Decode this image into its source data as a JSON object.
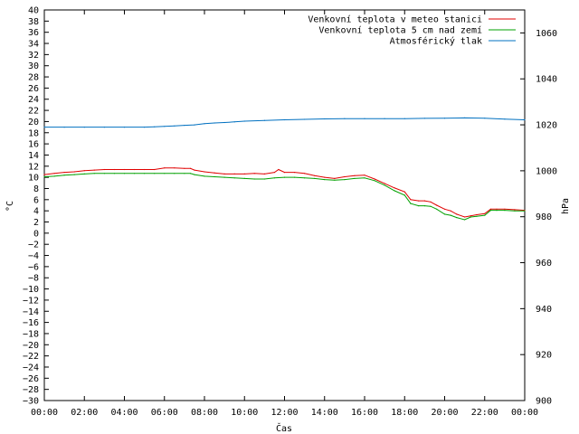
{
  "chart_data": {
    "type": "line",
    "xlabel": "Čas",
    "ylabel_left": "°C",
    "ylabel_right": "hPa",
    "ylim_left": [
      -30,
      40
    ],
    "ylim_right": [
      900,
      1070
    ],
    "x_ticks": [
      "00:00",
      "02:00",
      "04:00",
      "06:00",
      "08:00",
      "10:00",
      "12:00",
      "14:00",
      "16:00",
      "18:00",
      "20:00",
      "22:00",
      "00:00"
    ],
    "yticks_left": [
      -30,
      -28,
      -26,
      -24,
      -22,
      -20,
      -18,
      -16,
      -14,
      -12,
      -10,
      -8,
      -6,
      -4,
      -2,
      0,
      2,
      4,
      6,
      8,
      10,
      12,
      14,
      16,
      18,
      20,
      22,
      24,
      26,
      28,
      30,
      32,
      34,
      36,
      38,
      40
    ],
    "yticks_right": [
      900,
      920,
      940,
      960,
      980,
      1000,
      1020,
      1040,
      1060
    ],
    "grid": false,
    "legend_position": "top-right",
    "series": [
      {
        "name": "Venkovní teplota v meteo stanici",
        "axis": "left",
        "color": "#e00000",
        "x": [
          0,
          0.5,
          1,
          1.5,
          2,
          2.5,
          3,
          3.5,
          4,
          4.5,
          5,
          5.5,
          6,
          6.5,
          7,
          7.3,
          7.5,
          8,
          8.5,
          9,
          9.5,
          10,
          10.5,
          11,
          11.5,
          11.7,
          12,
          12.5,
          13,
          13.5,
          14,
          14.5,
          15,
          15.5,
          16,
          16.5,
          17,
          17.5,
          18,
          18.3,
          18.7,
          19,
          19.3,
          19.6,
          20,
          20.3,
          20.6,
          21,
          21.3,
          21.6,
          22,
          22.3,
          22.6,
          23,
          23.5,
          24
        ],
        "values": [
          10.5,
          10.7,
          10.9,
          11.0,
          11.2,
          11.3,
          11.4,
          11.4,
          11.4,
          11.4,
          11.4,
          11.4,
          11.7,
          11.7,
          11.6,
          11.6,
          11.3,
          11.0,
          10.8,
          10.6,
          10.6,
          10.6,
          10.7,
          10.6,
          10.9,
          11.4,
          10.9,
          10.9,
          10.7,
          10.3,
          10.0,
          9.8,
          10.1,
          10.3,
          10.4,
          9.7,
          8.9,
          8.1,
          7.4,
          6.0,
          5.8,
          5.8,
          5.6,
          5.0,
          4.3,
          4.0,
          3.4,
          2.9,
          3.1,
          3.3,
          3.5,
          4.3,
          4.3,
          4.3,
          4.2,
          4.1
        ]
      },
      {
        "name": "Venkovní teplota 5 cm nad zemí",
        "axis": "left",
        "color": "#00a000",
        "x": [
          0,
          0.5,
          1,
          1.5,
          2,
          2.5,
          3,
          3.5,
          4,
          4.5,
          5,
          5.5,
          6,
          6.5,
          7,
          7.3,
          7.5,
          8,
          8.5,
          9,
          9.5,
          10,
          10.5,
          11,
          11.5,
          12,
          12.5,
          13,
          13.5,
          14,
          14.5,
          15,
          15.5,
          16,
          16.5,
          17,
          17.5,
          18,
          18.3,
          18.7,
          19,
          19.3,
          19.6,
          20,
          20.3,
          20.6,
          21,
          21.3,
          21.6,
          22,
          22.3,
          22.6,
          23,
          23.5,
          24
        ],
        "values": [
          10.1,
          10.2,
          10.4,
          10.5,
          10.6,
          10.7,
          10.7,
          10.7,
          10.7,
          10.7,
          10.7,
          10.7,
          10.7,
          10.7,
          10.7,
          10.7,
          10.5,
          10.2,
          10.1,
          10.0,
          9.9,
          9.8,
          9.7,
          9.7,
          9.9,
          10.0,
          10.0,
          9.9,
          9.8,
          9.6,
          9.5,
          9.6,
          9.8,
          9.9,
          9.4,
          8.6,
          7.6,
          6.8,
          5.3,
          4.9,
          4.9,
          4.8,
          4.3,
          3.4,
          3.2,
          2.8,
          2.4,
          2.9,
          3.0,
          3.2,
          4.1,
          4.1,
          4.1,
          4.0,
          4.0
        ]
      },
      {
        "name": "Atmosférický tlak",
        "axis": "right",
        "color": "#0070c0",
        "x": [
          0,
          1,
          2,
          3,
          4,
          5,
          5.5,
          6,
          6.5,
          7,
          7.5,
          8,
          8.5,
          9,
          9.5,
          10,
          11,
          12,
          13,
          14,
          15,
          16,
          17,
          18,
          19,
          20,
          21,
          22,
          23,
          24
        ],
        "values": [
          1019.0,
          1019.0,
          1019.0,
          1019.0,
          1019.0,
          1019.0,
          1019.1,
          1019.3,
          1019.5,
          1019.8,
          1020.0,
          1020.5,
          1020.8,
          1021.0,
          1021.3,
          1021.6,
          1021.9,
          1022.2,
          1022.4,
          1022.6,
          1022.7,
          1022.7,
          1022.7,
          1022.7,
          1022.8,
          1022.9,
          1023.0,
          1022.9,
          1022.5,
          1022.2
        ]
      }
    ]
  }
}
